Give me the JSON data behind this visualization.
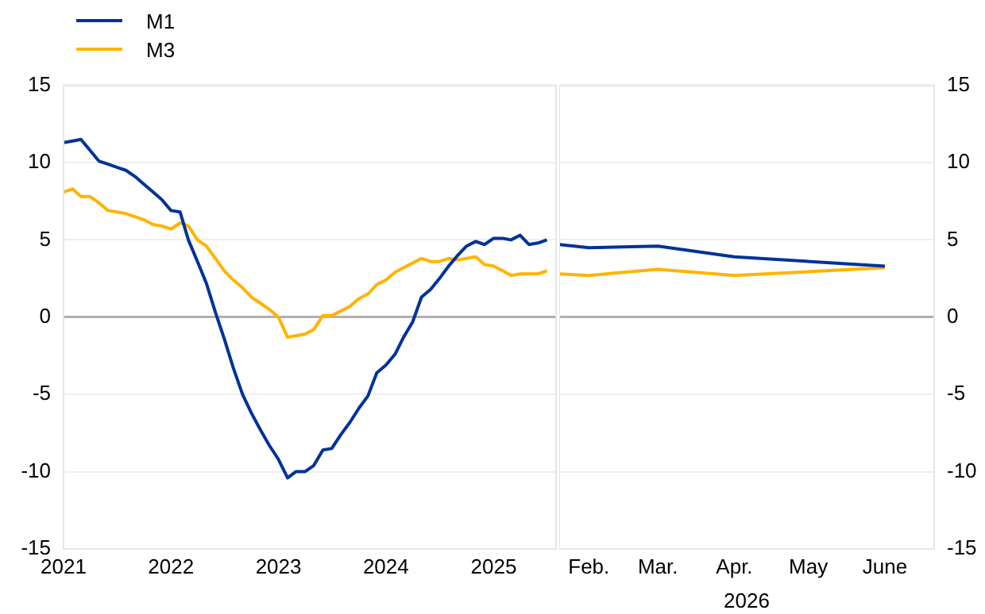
{
  "chart_data": [
    {
      "type": "line",
      "x": [
        "2021-01",
        "2021-02",
        "2021-03",
        "2021-04",
        "2021-05",
        "2021-06",
        "2021-07",
        "2021-08",
        "2021-09",
        "2021-10",
        "2021-11",
        "2021-12",
        "2022-01",
        "2022-02",
        "2022-03",
        "2022-04",
        "2022-05",
        "2022-06",
        "2022-07",
        "2022-08",
        "2022-09",
        "2022-10",
        "2022-11",
        "2022-12",
        "2023-01",
        "2023-02",
        "2023-03",
        "2023-04",
        "2023-05",
        "2023-06",
        "2023-07",
        "2023-08",
        "2023-09",
        "2023-10",
        "2023-11",
        "2023-12",
        "2024-01",
        "2024-02",
        "2024-03",
        "2024-04",
        "2024-05",
        "2024-06",
        "2024-07",
        "2024-08",
        "2024-09",
        "2024-10",
        "2024-11",
        "2024-12",
        "2025-01",
        "2025-02",
        "2025-03",
        "2025-04",
        "2025-05",
        "2025-06",
        "2025-07"
      ],
      "series": [
        {
          "name": "M1",
          "color": "#003299",
          "values": [
            11.3,
            11.4,
            11.5,
            10.8,
            10.1,
            9.9,
            9.7,
            9.5,
            9.1,
            8.6,
            8.1,
            7.6,
            6.9,
            6.8,
            5.0,
            3.6,
            2.2,
            0.3,
            -1.4,
            -3.3,
            -5.0,
            -6.2,
            -7.3,
            -8.3,
            -9.2,
            -10.4,
            -10.0,
            -10.0,
            -9.6,
            -8.6,
            -8.5,
            -7.6,
            -6.8,
            -5.9,
            -5.1,
            -3.6,
            -3.1,
            -2.4,
            -1.3,
            -0.3,
            1.3,
            1.8,
            2.5,
            3.3,
            4.0,
            4.6,
            4.9,
            4.7,
            5.1,
            5.1,
            5.0,
            5.3,
            4.7,
            4.8,
            5.0
          ]
        },
        {
          "name": "M3",
          "color": "#ffb400",
          "values": [
            8.1,
            8.3,
            7.8,
            7.8,
            7.4,
            6.9,
            6.8,
            6.7,
            6.5,
            6.3,
            6.0,
            5.9,
            5.7,
            6.1,
            5.9,
            5.0,
            4.6,
            3.8,
            3.0,
            2.4,
            1.9,
            1.3,
            0.9,
            0.5,
            0.0,
            -1.3,
            -1.2,
            -1.1,
            -0.8,
            0.1,
            0.1,
            0.4,
            0.7,
            1.2,
            1.5,
            2.1,
            2.4,
            2.9,
            3.2,
            3.5,
            3.8,
            3.6,
            3.6,
            3.8,
            3.7,
            3.8,
            3.9,
            3.4,
            3.3,
            3.0,
            2.7,
            2.8,
            2.8,
            2.8,
            3.0
          ]
        }
      ],
      "xlim": [
        "2021-01",
        "2025-08"
      ],
      "xticks": [
        {
          "value": "2021-01",
          "label": "2021"
        },
        {
          "value": "2022-01",
          "label": "2022"
        },
        {
          "value": "2023-01",
          "label": "2023"
        },
        {
          "value": "2024-01",
          "label": "2024"
        },
        {
          "value": "2025-01",
          "label": "2025"
        }
      ],
      "ylim": [
        -15,
        15
      ],
      "yticks": [
        -15,
        -10,
        -5,
        0,
        5,
        10,
        15
      ],
      "grid": "y",
      "legend": "top left"
    },
    {
      "type": "line",
      "x": [
        "2026-01-20",
        "2026-02-01",
        "2026-03-01",
        "2026-04-01",
        "2026-06-01"
      ],
      "series": [
        {
          "color": "#003299",
          "values": [
            4.7,
            4.5,
            4.6,
            3.9,
            3.3
          ]
        },
        {
          "color": "#ffb400",
          "values": [
            2.8,
            2.7,
            3.1,
            2.7,
            3.2
          ]
        }
      ],
      "xlabel": "2026",
      "xlim": [
        "2026-01-20",
        "2026-06-21"
      ],
      "xticks": [
        {
          "value": "2026-02-01",
          "label": "Feb."
        },
        {
          "value": "2026-03-01",
          "label": "Mar."
        },
        {
          "value": "2026-04-01",
          "label": "Apr."
        },
        {
          "value": "2026-05-01",
          "label": "May"
        },
        {
          "value": "2026-06-01",
          "label": "June"
        }
      ],
      "ylim": [
        -15,
        15
      ],
      "yticks": [
        -15,
        -10,
        -5,
        0,
        5,
        10,
        15
      ],
      "grid": "y"
    }
  ]
}
